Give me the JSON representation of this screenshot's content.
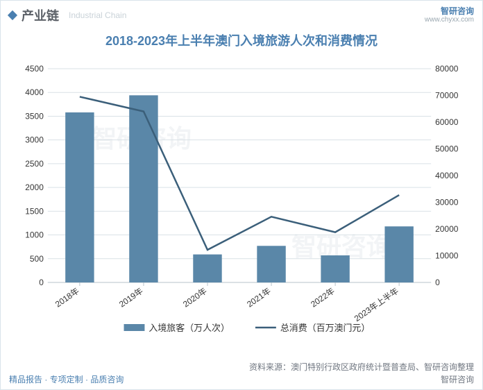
{
  "header": {
    "section": "产业链",
    "subtitle": "Industrial Chain",
    "logo_name": "智研咨询",
    "logo_url": "www.chyxx.com"
  },
  "chart": {
    "type": "bar+line",
    "title": "2018-2023年上半年澳门入境旅游人次和消费情况",
    "title_color": "#4a7fb0",
    "title_fontsize": 18,
    "categories": [
      "2018年",
      "2019年",
      "2020年",
      "2021年",
      "2022年",
      "2023年上半年"
    ],
    "left_axis": {
      "min": 0,
      "max": 4500,
      "step": 500,
      "ticks": [
        0,
        500,
        1000,
        1500,
        2000,
        2500,
        3000,
        3500,
        4000,
        4500
      ]
    },
    "right_axis": {
      "min": 0,
      "max": 80000,
      "step": 10000,
      "ticks": [
        0,
        10000,
        20000,
        30000,
        40000,
        50000,
        60000,
        70000,
        80000
      ]
    },
    "bar": {
      "label": "入境旅客（万人次）",
      "values": [
        3580,
        3940,
        590,
        770,
        570,
        1180
      ],
      "color": "#5a87a8",
      "width": 0.45
    },
    "line": {
      "label": "总消费（百万澳门元）",
      "values": [
        69500,
        64000,
        12200,
        24600,
        18800,
        32700
      ],
      "color": "#3b5f7a",
      "stroke_width": 2.5
    },
    "background_color": "#ffffff",
    "grid_color": "#d9e1e6",
    "axis_color": "#b7c3cb",
    "tick_font_size": 12,
    "xlabel_rotation": -35,
    "watermark_text": "智研咨询"
  },
  "source": "资料来源：澳门特别行政区政府统计暨普查局、智研咨询整理",
  "footer": {
    "left": "精品报告 · 专项定制 · 品质咨询",
    "right": "智研咨询"
  }
}
